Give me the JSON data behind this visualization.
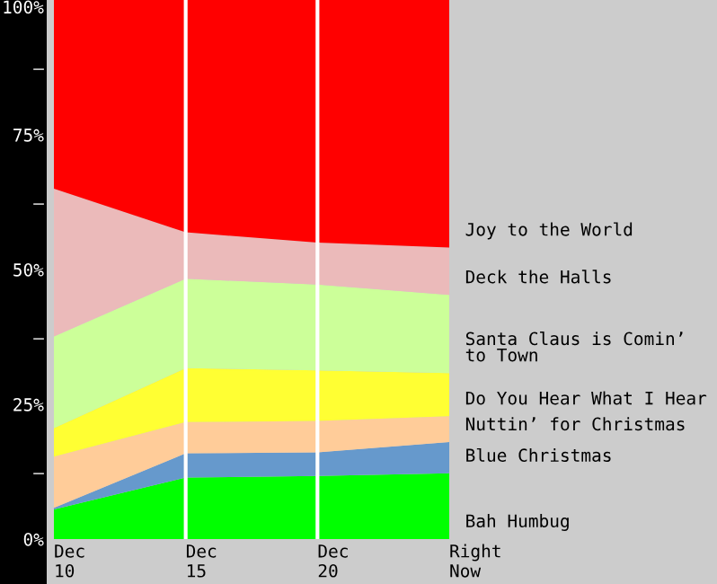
{
  "chart_data": {
    "type": "area",
    "stacked": true,
    "categories": [
      "Dec\n10",
      "Dec\n15",
      "Dec\n20",
      "Right\nNow"
    ],
    "ylim": [
      0,
      100
    ],
    "yticks": [
      {
        "value": 0,
        "label": "0%"
      },
      {
        "value": 12.5,
        "label": "—"
      },
      {
        "value": 25,
        "label": "25%"
      },
      {
        "value": 37.5,
        "label": "—"
      },
      {
        "value": 50,
        "label": "50%"
      },
      {
        "value": 62.5,
        "label": "—"
      },
      {
        "value": 75,
        "label": "75%"
      },
      {
        "value": 87.5,
        "label": "—"
      },
      {
        "value": 100,
        "label": "100%"
      }
    ],
    "ref_lines": [
      {
        "axis": "x",
        "value": "Dec\n15",
        "color": "#ffffff"
      },
      {
        "axis": "x",
        "value": "Dec\n20",
        "color": "#ffffff"
      }
    ],
    "series": [
      {
        "name": "Bah Humbug",
        "color": "#00ff00",
        "values": [
          5.5,
          11.4,
          11.7,
          12.2
        ]
      },
      {
        "name": "Blue Christmas",
        "color": "#6699cc",
        "values": [
          0.3,
          4.5,
          4.4,
          5.8
        ]
      },
      {
        "name": "Nuttin’ for Christmas",
        "color": "#ffcc99",
        "values": [
          9.5,
          5.8,
          5.8,
          4.8
        ]
      },
      {
        "name": "Do You Hear What I Hear",
        "color": "#ffff33",
        "values": [
          5.3,
          10,
          9.4,
          8
        ]
      },
      {
        "name": "Santa Claus is Comin’\nto Town",
        "color": "#ccff99",
        "values": [
          17,
          16.6,
          15.9,
          14.5
        ]
      },
      {
        "name": "Deck the Halls",
        "color": "#ebbaba",
        "values": [
          27.4,
          8.6,
          7.8,
          8.8
        ]
      },
      {
        "name": "Joy to the World",
        "color": "#ff0000",
        "values": [
          35,
          43.1,
          45,
          45.9
        ]
      }
    ]
  }
}
